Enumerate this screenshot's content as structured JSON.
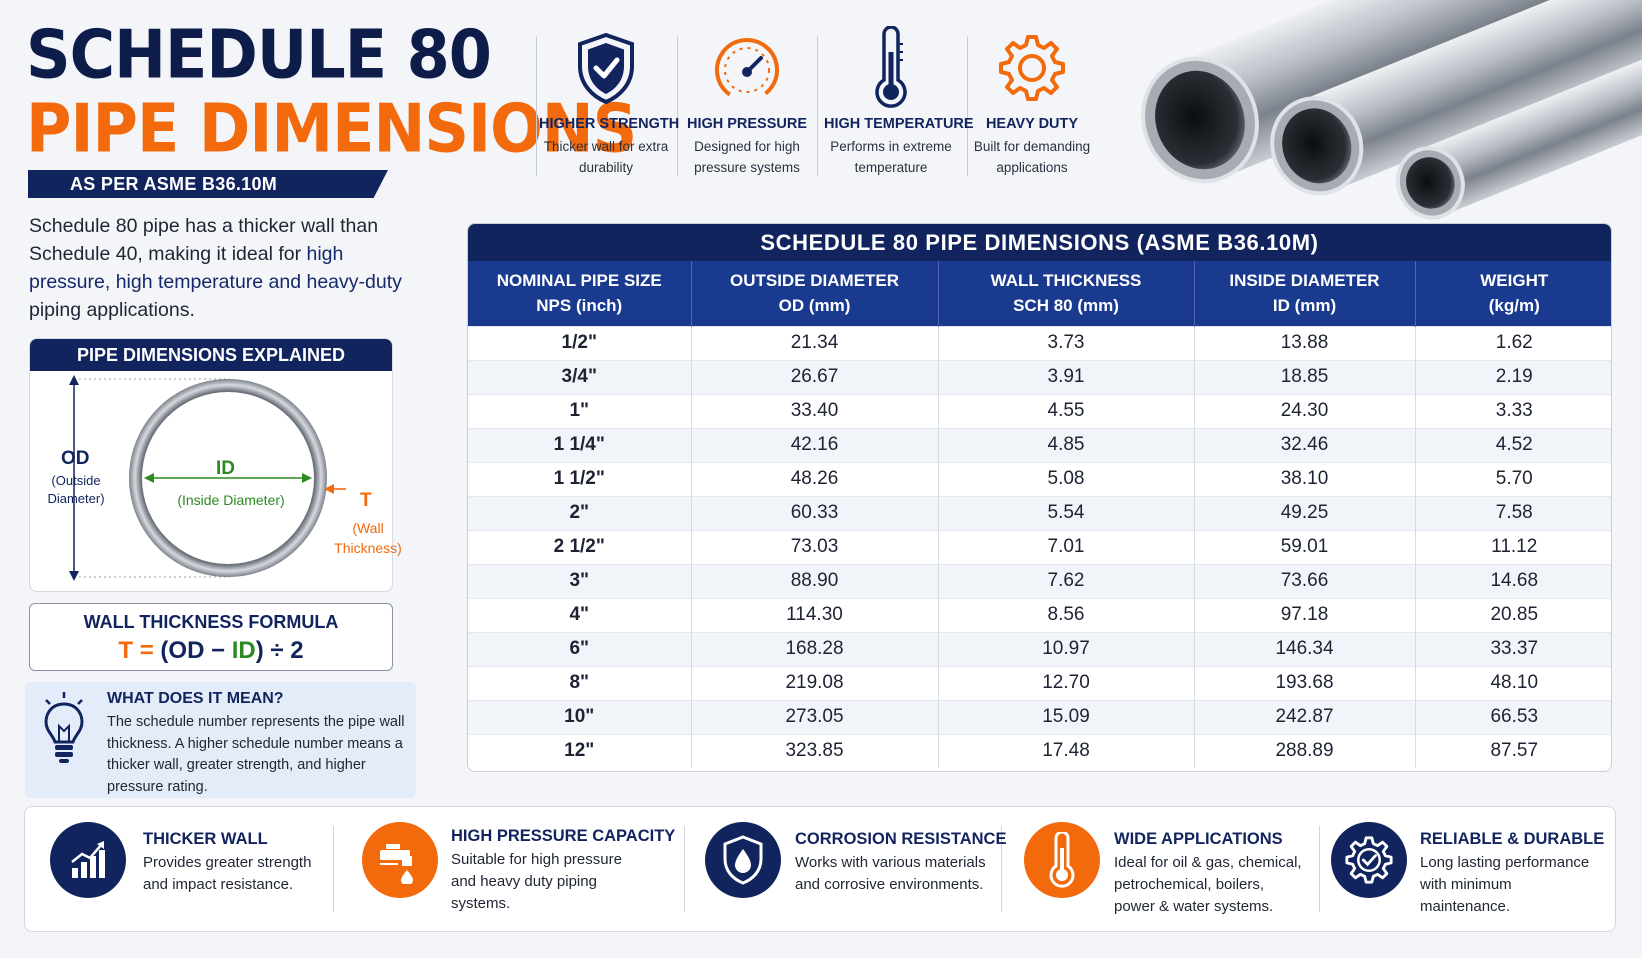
{
  "title": {
    "line1": "SCHEDULE 80",
    "line2": "PIPE DIMENSIONS",
    "standard": "AS PER ASME B36.10M"
  },
  "intro": {
    "part1": "Schedule 80 pipe has a thicker wall than Schedule 40, making it ideal for ",
    "highlight": "high pressure, high temperature and heavy-duty",
    "part2": " piping applications."
  },
  "features": [
    {
      "icon": "shield-check-icon",
      "title": "HIGHER STRENGTH",
      "desc": "Thicker wall for extra durability"
    },
    {
      "icon": "pressure-gauge-icon",
      "title": "HIGH PRESSURE",
      "desc": "Designed for high pressure systems"
    },
    {
      "icon": "thermometer-icon",
      "title": "HIGH TEMPERATURE",
      "desc": "Performs in extreme temperature"
    },
    {
      "icon": "gear-icon",
      "title": "HEAVY DUTY",
      "desc": "Built for demanding applications"
    }
  ],
  "explained": {
    "heading": "PIPE DIMENSIONS EXPLAINED",
    "od_label": "OD",
    "od_desc_1": "(Outside",
    "od_desc_2": "Diameter)",
    "id_label": "ID",
    "id_desc": "(Inside Diameter)",
    "t_label": "T",
    "t_desc_1": "(Wall",
    "t_desc_2": "Thickness)"
  },
  "formula": {
    "title": "WALL THICKNESS FORMULA",
    "t": "T",
    "eq": " = ",
    "open": "(",
    "od": "OD",
    "minus": " − ",
    "id": "ID",
    "close": ") ÷ 2"
  },
  "meaning": {
    "icon": "lightbulb-icon",
    "title": "WHAT DOES IT MEAN?",
    "text": "The schedule number represents the pipe wall thickness. A higher schedule number means a thicker wall, greater strength, and higher pressure rating."
  },
  "table": {
    "caption": "SCHEDULE 80 PIPE DIMENSIONS (ASME B36.10M)",
    "headers": [
      {
        "l1": "NOMINAL PIPE SIZE",
        "l2": "NPS (inch)"
      },
      {
        "l1": "OUTSIDE DIAMETER",
        "l2": "OD (mm)"
      },
      {
        "l1": "WALL THICKNESS",
        "l2": "SCH 80 (mm)"
      },
      {
        "l1": "INSIDE DIAMETER",
        "l2": "ID (mm)"
      },
      {
        "l1": "WEIGHT",
        "l2": "(kg/m)"
      }
    ],
    "rows": [
      [
        "1/2\"",
        "21.34",
        "3.73",
        "13.88",
        "1.62"
      ],
      [
        "3/4\"",
        "26.67",
        "3.91",
        "18.85",
        "2.19"
      ],
      [
        "1\"",
        "33.40",
        "4.55",
        "24.30",
        "3.33"
      ],
      [
        "1 1/4\"",
        "42.16",
        "4.85",
        "32.46",
        "4.52"
      ],
      [
        "1 1/2\"",
        "48.26",
        "5.08",
        "38.10",
        "5.70"
      ],
      [
        "2\"",
        "60.33",
        "5.54",
        "49.25",
        "7.58"
      ],
      [
        "2 1/2\"",
        "73.03",
        "7.01",
        "59.01",
        "11.12"
      ],
      [
        "3\"",
        "88.90",
        "7.62",
        "73.66",
        "14.68"
      ],
      [
        "4\"",
        "114.30",
        "8.56",
        "97.18",
        "20.85"
      ],
      [
        "6\"",
        "168.28",
        "10.97",
        "146.34",
        "33.37"
      ],
      [
        "8\"",
        "219.08",
        "12.70",
        "193.68",
        "48.10"
      ],
      [
        "10\"",
        "273.05",
        "15.09",
        "242.87",
        "66.53"
      ],
      [
        "12\"",
        "323.85",
        "17.48",
        "288.89",
        "87.57"
      ]
    ]
  },
  "benefits": [
    {
      "icon": "bar-chart-icon",
      "color": "#12245e",
      "title": "THICKER WALL",
      "desc": "Provides greater strength and impact resistance."
    },
    {
      "icon": "faucet-drop-icon",
      "color": "#f26a0c",
      "title": "HIGH PRESSURE CAPACITY",
      "desc": "Suitable for high pressure and heavy duty piping systems."
    },
    {
      "icon": "shield-drop-icon",
      "color": "#12245e",
      "title": "CORROSION RESISTANCE",
      "desc": "Works with various materials and corrosive environments."
    },
    {
      "icon": "thermometer-icon",
      "color": "#f26a0c",
      "title": "WIDE APPLICATIONS",
      "desc": "Ideal for oil & gas, chemical, petrochemical, boilers, power & water systems."
    },
    {
      "icon": "gear-check-icon",
      "color": "#12245e",
      "title": "RELIABLE & DURABLE",
      "desc": "Long lasting performance with minimum maintenance."
    }
  ],
  "colors": {
    "navy": "#12245e",
    "orange": "#f26a0c",
    "green": "#2b8a22",
    "table_header": "#1a3a8f"
  }
}
